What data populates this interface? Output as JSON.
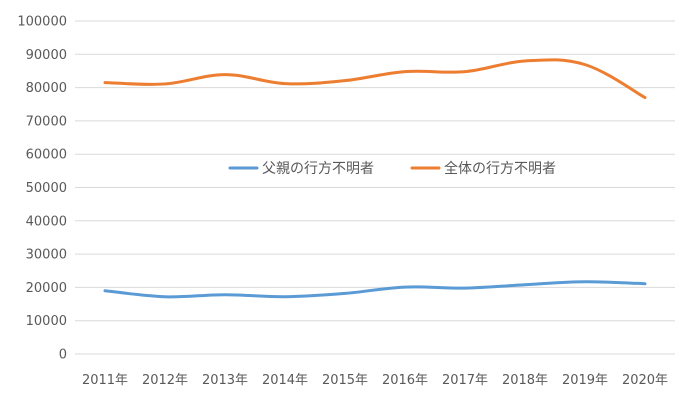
{
  "chart_data": {
    "type": "line",
    "title": "",
    "xlabel": "",
    "ylabel": "",
    "categories": [
      "2011年",
      "2012年",
      "2013年",
      "2014年",
      "2015年",
      "2016年",
      "2017年",
      "2018年",
      "2019年",
      "2020年"
    ],
    "ylim": [
      0,
      100000
    ],
    "yticks": [
      "0",
      "10000",
      "20000",
      "30000",
      "40000",
      "50000",
      "60000",
      "70000",
      "80000",
      "90000",
      "100000"
    ],
    "grid": true,
    "legend_position": "center",
    "series": [
      {
        "name": "父親の行方不明者",
        "color": "#5b9bd5",
        "values": [
          19000,
          17200,
          17800,
          17200,
          18200,
          20100,
          19800,
          20800,
          21700,
          21100
        ]
      },
      {
        "name": "全体の行方不明者",
        "color": "#ed7d31",
        "values": [
          81500,
          81100,
          83900,
          81200,
          82100,
          84800,
          84800,
          88000,
          86900,
          77000
        ]
      }
    ]
  }
}
